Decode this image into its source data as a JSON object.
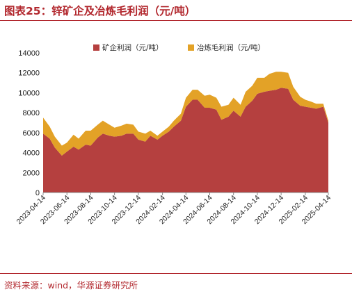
{
  "header": {
    "title": "图表25：锌矿企及冶炼毛利润（元/吨）"
  },
  "footer": {
    "source": "资料来源：wind，华源证券研究所"
  },
  "chart_data": {
    "type": "area",
    "title": "",
    "xlabel": "",
    "ylabel": "",
    "stacked": true,
    "ylim": [
      0,
      14000
    ],
    "yticks": [
      0,
      2000,
      4000,
      6000,
      8000,
      10000,
      12000,
      14000
    ],
    "grid": false,
    "legend": "top-center",
    "x_tick_labels": [
      "2023-04-14",
      "2023-06-14",
      "2023-08-14",
      "2023-10-14",
      "2023-12-14",
      "2024-02-14",
      "2024-04-14",
      "2024-06-14",
      "2024-08-14",
      "2024-10-14",
      "2024-12-14",
      "2025-02-14",
      "2025-04-14"
    ],
    "x": [
      "2023-04-14",
      "2023-05-01",
      "2023-05-14",
      "2023-06-01",
      "2023-06-14",
      "2023-07-01",
      "2023-07-14",
      "2023-08-01",
      "2023-08-14",
      "2023-09-01",
      "2023-09-14",
      "2023-10-01",
      "2023-10-14",
      "2023-11-01",
      "2023-11-14",
      "2023-12-01",
      "2023-12-14",
      "2024-01-01",
      "2024-01-14",
      "2024-02-01",
      "2024-02-14",
      "2024-03-01",
      "2024-03-14",
      "2024-04-01",
      "2024-04-14",
      "2024-05-01",
      "2024-05-14",
      "2024-06-01",
      "2024-06-14",
      "2024-07-01",
      "2024-07-14",
      "2024-08-01",
      "2024-08-14",
      "2024-09-01",
      "2024-09-14",
      "2024-10-01",
      "2024-10-14",
      "2024-11-01",
      "2024-11-14",
      "2024-12-01",
      "2024-12-14",
      "2025-01-01",
      "2025-01-14",
      "2025-02-01",
      "2025-02-14",
      "2025-03-01",
      "2025-03-14",
      "2025-04-01",
      "2025-04-14"
    ],
    "series": [
      {
        "name": "矿企利润（元/吨）",
        "color": "#b5403f",
        "values": [
          5900,
          5400,
          4500,
          3700,
          4100,
          4600,
          4300,
          4800,
          4700,
          5500,
          5900,
          5700,
          5600,
          5700,
          5900,
          5900,
          5300,
          5100,
          5700,
          5300,
          5700,
          6100,
          6600,
          7200,
          8600,
          9300,
          9300,
          8500,
          8500,
          8300,
          7300,
          7600,
          8200,
          7600,
          8600,
          9200,
          9900,
          10100,
          10200,
          10300,
          10500,
          10400,
          9300,
          8700,
          8600,
          8500,
          8400,
          8600,
          7000
        ]
      },
      {
        "name": "冶炼毛利润（元/吨）",
        "color": "#e3a227",
        "values": [
          1600,
          1200,
          1100,
          1000,
          900,
          1200,
          1100,
          1400,
          1500,
          1300,
          1300,
          1100,
          900,
          1000,
          1000,
          900,
          800,
          800,
          500,
          400,
          400,
          500,
          600,
          700,
          900,
          1000,
          1000,
          1200,
          1300,
          1200,
          1300,
          1200,
          1300,
          1200,
          1500,
          1500,
          1600,
          1400,
          1700,
          1800,
          1600,
          1600,
          1300,
          900,
          700,
          600,
          500,
          300,
          200
        ]
      }
    ]
  }
}
